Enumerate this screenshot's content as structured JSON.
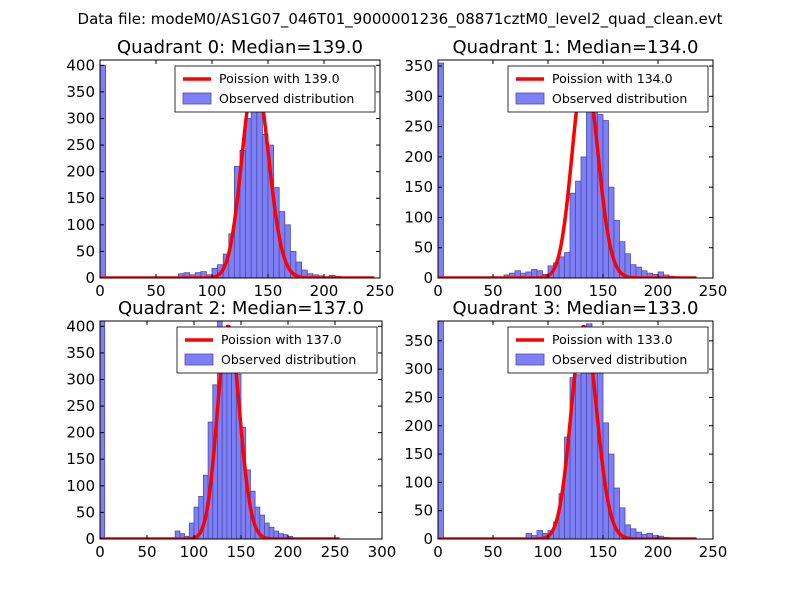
{
  "page_title": "Data file: modeM0/AS1G07_046T01_9000001236_08871cztM0_level2_quad_clean.evt",
  "colors": {
    "bar_fill": "#7f7ff5",
    "bar_edge": "#4c4cb2",
    "fit_line": "#ff0000",
    "axes": "#000000"
  },
  "chart_data": [
    {
      "type": "bar",
      "title": "Quadrant 0: Median=139.0",
      "xlim": [
        0,
        250
      ],
      "ylim": [
        0,
        410
      ],
      "xticks": [
        0,
        50,
        100,
        150,
        200,
        250
      ],
      "yticks": [
        0,
        50,
        100,
        150,
        200,
        250,
        300,
        350,
        400
      ],
      "legend": {
        "position": "top-right",
        "line_label": "Poission with 139.0",
        "bar_label": "Observed distribution"
      },
      "fit": {
        "type": "poisson",
        "mean": 139.0,
        "peak": 380,
        "x_range": [
          0,
          245
        ]
      },
      "histogram": {
        "bin_edges": [
          0,
          5,
          10,
          15,
          20,
          25,
          30,
          35,
          40,
          45,
          50,
          55,
          60,
          65,
          70,
          75,
          80,
          85,
          90,
          95,
          100,
          105,
          110,
          115,
          120,
          125,
          130,
          135,
          140,
          145,
          150,
          155,
          160,
          165,
          170,
          175,
          180,
          185,
          190,
          195,
          200,
          205,
          210,
          215,
          220,
          225,
          230,
          235,
          240,
          245
        ],
        "counts": [
          400,
          0,
          0,
          0,
          0,
          0,
          0,
          0,
          0,
          0,
          0,
          0,
          0,
          0,
          8,
          10,
          6,
          10,
          12,
          6,
          18,
          25,
          45,
          83,
          210,
          240,
          300,
          390,
          330,
          270,
          250,
          170,
          125,
          100,
          50,
          30,
          15,
          8,
          6,
          4,
          2,
          5,
          3,
          0,
          2,
          1,
          0,
          0,
          0
        ]
      }
    },
    {
      "type": "bar",
      "title": "Quadrant 1: Median=134.0",
      "xlim": [
        0,
        250
      ],
      "ylim": [
        0,
        360
      ],
      "xticks": [
        0,
        50,
        100,
        150,
        200,
        250
      ],
      "yticks": [
        0,
        50,
        100,
        150,
        200,
        250,
        300,
        350
      ],
      "legend": {
        "position": "top-right",
        "line_label": "Poission with 134.0",
        "bar_label": "Observed distribution"
      },
      "fit": {
        "type": "poisson",
        "mean": 134.0,
        "peak": 345,
        "x_range": [
          0,
          235
        ]
      },
      "histogram": {
        "bin_edges": [
          0,
          5,
          10,
          15,
          20,
          25,
          30,
          35,
          40,
          45,
          50,
          55,
          60,
          65,
          70,
          75,
          80,
          85,
          90,
          95,
          100,
          105,
          110,
          115,
          120,
          125,
          130,
          135,
          140,
          145,
          150,
          155,
          160,
          165,
          170,
          175,
          180,
          185,
          190,
          195,
          200,
          205,
          210,
          215,
          220,
          225,
          230,
          235
        ],
        "counts": [
          355,
          0,
          0,
          0,
          0,
          0,
          0,
          0,
          0,
          0,
          0,
          0,
          5,
          8,
          12,
          8,
          10,
          14,
          12,
          6,
          20,
          25,
          35,
          42,
          140,
          160,
          200,
          300,
          350,
          270,
          260,
          150,
          95,
          60,
          40,
          22,
          18,
          12,
          8,
          6,
          10,
          5,
          3,
          2,
          0,
          0,
          0
        ]
      }
    },
    {
      "type": "bar",
      "title": "Quadrant 2: Median=137.0",
      "xlim": [
        0,
        300
      ],
      "ylim": [
        0,
        410
      ],
      "xticks": [
        0,
        50,
        100,
        150,
        200,
        250,
        300
      ],
      "yticks": [
        0,
        50,
        100,
        150,
        200,
        250,
        300,
        350,
        400
      ],
      "legend": {
        "position": "top-right",
        "line_label": "Poission with 137.0",
        "bar_label": "Observed distribution"
      },
      "fit": {
        "type": "poisson",
        "mean": 137.0,
        "peak": 400,
        "x_range": [
          0,
          255
        ]
      },
      "histogram": {
        "bin_edges": [
          0,
          5,
          10,
          15,
          20,
          25,
          30,
          35,
          40,
          45,
          50,
          55,
          60,
          65,
          70,
          75,
          80,
          85,
          90,
          95,
          100,
          105,
          110,
          115,
          120,
          125,
          130,
          135,
          140,
          145,
          150,
          155,
          160,
          165,
          170,
          175,
          180,
          185,
          190,
          195,
          200,
          205,
          210,
          215,
          220,
          225,
          230,
          235,
          240,
          245,
          250
        ],
        "counts": [
          410,
          0,
          0,
          0,
          0,
          0,
          0,
          0,
          0,
          0,
          0,
          0,
          0,
          0,
          0,
          0,
          15,
          10,
          5,
          30,
          60,
          80,
          120,
          220,
          290,
          410,
          330,
          350,
          360,
          310,
          210,
          130,
          90,
          60,
          45,
          30,
          22,
          15,
          10,
          8,
          5,
          2,
          1,
          0,
          0,
          0,
          0,
          0,
          0,
          0
        ]
      }
    },
    {
      "type": "bar",
      "title": "Quadrant 3: Median=133.0",
      "xlim": [
        0,
        250
      ],
      "ylim": [
        0,
        385
      ],
      "xticks": [
        0,
        50,
        100,
        150,
        200,
        250
      ],
      "yticks": [
        0,
        50,
        100,
        150,
        200,
        250,
        300,
        350
      ],
      "legend": {
        "position": "top-right",
        "line_label": "Poission with 133.0",
        "bar_label": "Observed distribution"
      },
      "fit": {
        "type": "poisson",
        "mean": 133.0,
        "peak": 375,
        "x_range": [
          0,
          235
        ]
      },
      "histogram": {
        "bin_edges": [
          0,
          5,
          10,
          15,
          20,
          25,
          30,
          35,
          40,
          45,
          50,
          55,
          60,
          65,
          70,
          75,
          80,
          85,
          90,
          95,
          100,
          105,
          110,
          115,
          120,
          125,
          130,
          135,
          140,
          145,
          150,
          155,
          160,
          165,
          170,
          175,
          180,
          185,
          190,
          195,
          200,
          205,
          210,
          215,
          220,
          225,
          230,
          235
        ],
        "counts": [
          385,
          0,
          0,
          0,
          0,
          0,
          0,
          0,
          0,
          0,
          0,
          0,
          0,
          0,
          0,
          0,
          10,
          6,
          15,
          10,
          15,
          30,
          80,
          180,
          285,
          290,
          360,
          380,
          310,
          300,
          205,
          150,
          90,
          55,
          25,
          18,
          12,
          8,
          10,
          6,
          5,
          3,
          2,
          0,
          0,
          0,
          0
        ]
      }
    }
  ]
}
